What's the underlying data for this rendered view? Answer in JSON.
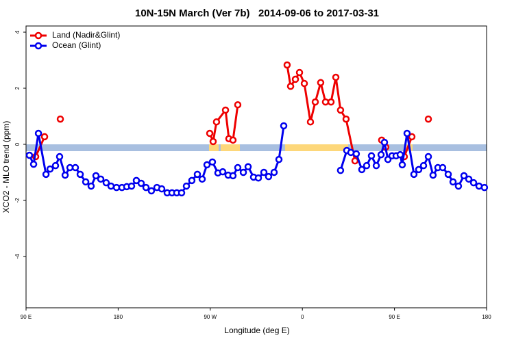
{
  "chart_data": {
    "type": "line",
    "title": "10N-15N March (Ver 7b)   2014-09-06 to 2017-03-31",
    "x_label": "Longitude (deg E)",
    "y_label": "XCO2 - MLO trend (ppm)",
    "xlim": [
      90,
      540
    ],
    "ylim": [
      -5.83,
      4.22
    ],
    "xticks": [
      {
        "value": 90,
        "label": "90 E"
      },
      180,
      {
        "value": 270,
        "label": "90 W"
      },
      {
        "value": 360,
        "label": "0"
      },
      {
        "value": 450,
        "label": "90 E"
      },
      {
        "value": 540,
        "label": "180"
      }
    ],
    "yticks": [
      -4,
      -2,
      0,
      2,
      4
    ],
    "legend": "top-left",
    "series": [
      {
        "name": "Land (Nadir&Glint)",
        "color": "#ee0000",
        "x": [
          99.4,
          108.1,
          null,
          123.5,
          null,
          269.5,
          272.8,
          276.1,
          284.9,
          288.2,
          292.2,
          296.9,
          null,
          345.1,
          348.5,
          353.2,
          357.2,
          361.9,
          367.9,
          372.6,
          377.9,
          382.6,
          388.0,
          392.7,
          397.3,
          402.7,
          411.4,
          null,
          437.5,
          441.5,
          null,
          459.6,
          467.0,
          null,
          483.1
        ],
        "values": [
          -0.44,
          0.27,
          null,
          0.9,
          null,
          0.39,
          0.1,
          0.8,
          1.22,
          0.2,
          0.15,
          1.41,
          null,
          2.83,
          2.07,
          2.32,
          2.56,
          2.17,
          0.8,
          1.51,
          2.2,
          1.51,
          1.51,
          2.39,
          1.22,
          0.9,
          -0.59,
          null,
          0.15,
          -0.1,
          null,
          -0.44,
          0.27,
          null,
          0.9
        ]
      },
      {
        "name": "Ocean (Glint)",
        "color": "#0000ee",
        "x": [
          93.3,
          97.4,
          102.1,
          109.5,
          113.5,
          118.8,
          122.8,
          128.2,
          132.9,
          138.2,
          142.9,
          148.3,
          153.6,
          158.3,
          163.0,
          168.3,
          173.0,
          178.4,
          183.7,
          188.4,
          193.1,
          197.8,
          202.5,
          207.2,
          212.5,
          217.9,
          222.6,
          227.9,
          232.6,
          237.3,
          242.0,
          246.7,
          252.0,
          257.4,
          262.1,
          266.8,
          272.1,
          277.5,
          282.2,
          287.5,
          292.2,
          296.9,
          302.3,
          307.0,
          312.3,
          317.0,
          322.4,
          327.0,
          332.4,
          337.1,
          341.8,
          null,
          397.3,
          403.4,
          407.4,
          412.7,
          418.1,
          422.8,
          427.5,
          432.2,
          436.9,
          440.2,
          443.6,
          447.6,
          451.6,
          455.6,
          457.6,
          462.3,
          469.0,
          473.7,
          478.4,
          483.1,
          487.7,
          492.4,
          497.1,
          502.5,
          507.2,
          512.5,
          517.9,
          522.6,
          527.3,
          532.6,
          537.9
        ],
        "values": [
          -0.39,
          -0.71,
          0.39,
          -1.07,
          -0.88,
          -0.76,
          -0.44,
          -1.1,
          -0.83,
          -0.83,
          -1.07,
          -1.34,
          -1.49,
          -1.12,
          -1.24,
          -1.37,
          -1.49,
          -1.54,
          -1.54,
          -1.51,
          -1.49,
          -1.29,
          -1.39,
          -1.54,
          -1.66,
          -1.54,
          -1.59,
          -1.73,
          -1.73,
          -1.73,
          -1.73,
          -1.49,
          -1.29,
          -1.07,
          -1.24,
          -0.73,
          -0.63,
          -1.02,
          -0.98,
          -1.1,
          -1.12,
          -0.83,
          -1.0,
          -0.8,
          -1.17,
          -1.2,
          -1.0,
          -1.15,
          -1.0,
          -0.54,
          0.66,
          null,
          -0.93,
          -0.22,
          -0.29,
          -0.34,
          -0.9,
          -0.76,
          -0.41,
          -0.76,
          -0.37,
          0.07,
          -0.54,
          -0.41,
          -0.41,
          -0.37,
          -0.73,
          0.39,
          -1.07,
          -0.9,
          -0.76,
          -0.44,
          -1.1,
          -0.83,
          -0.83,
          -1.07,
          -1.34,
          -1.49,
          -1.12,
          -1.24,
          -1.37,
          -1.49,
          -1.54
        ]
      }
    ]
  }
}
